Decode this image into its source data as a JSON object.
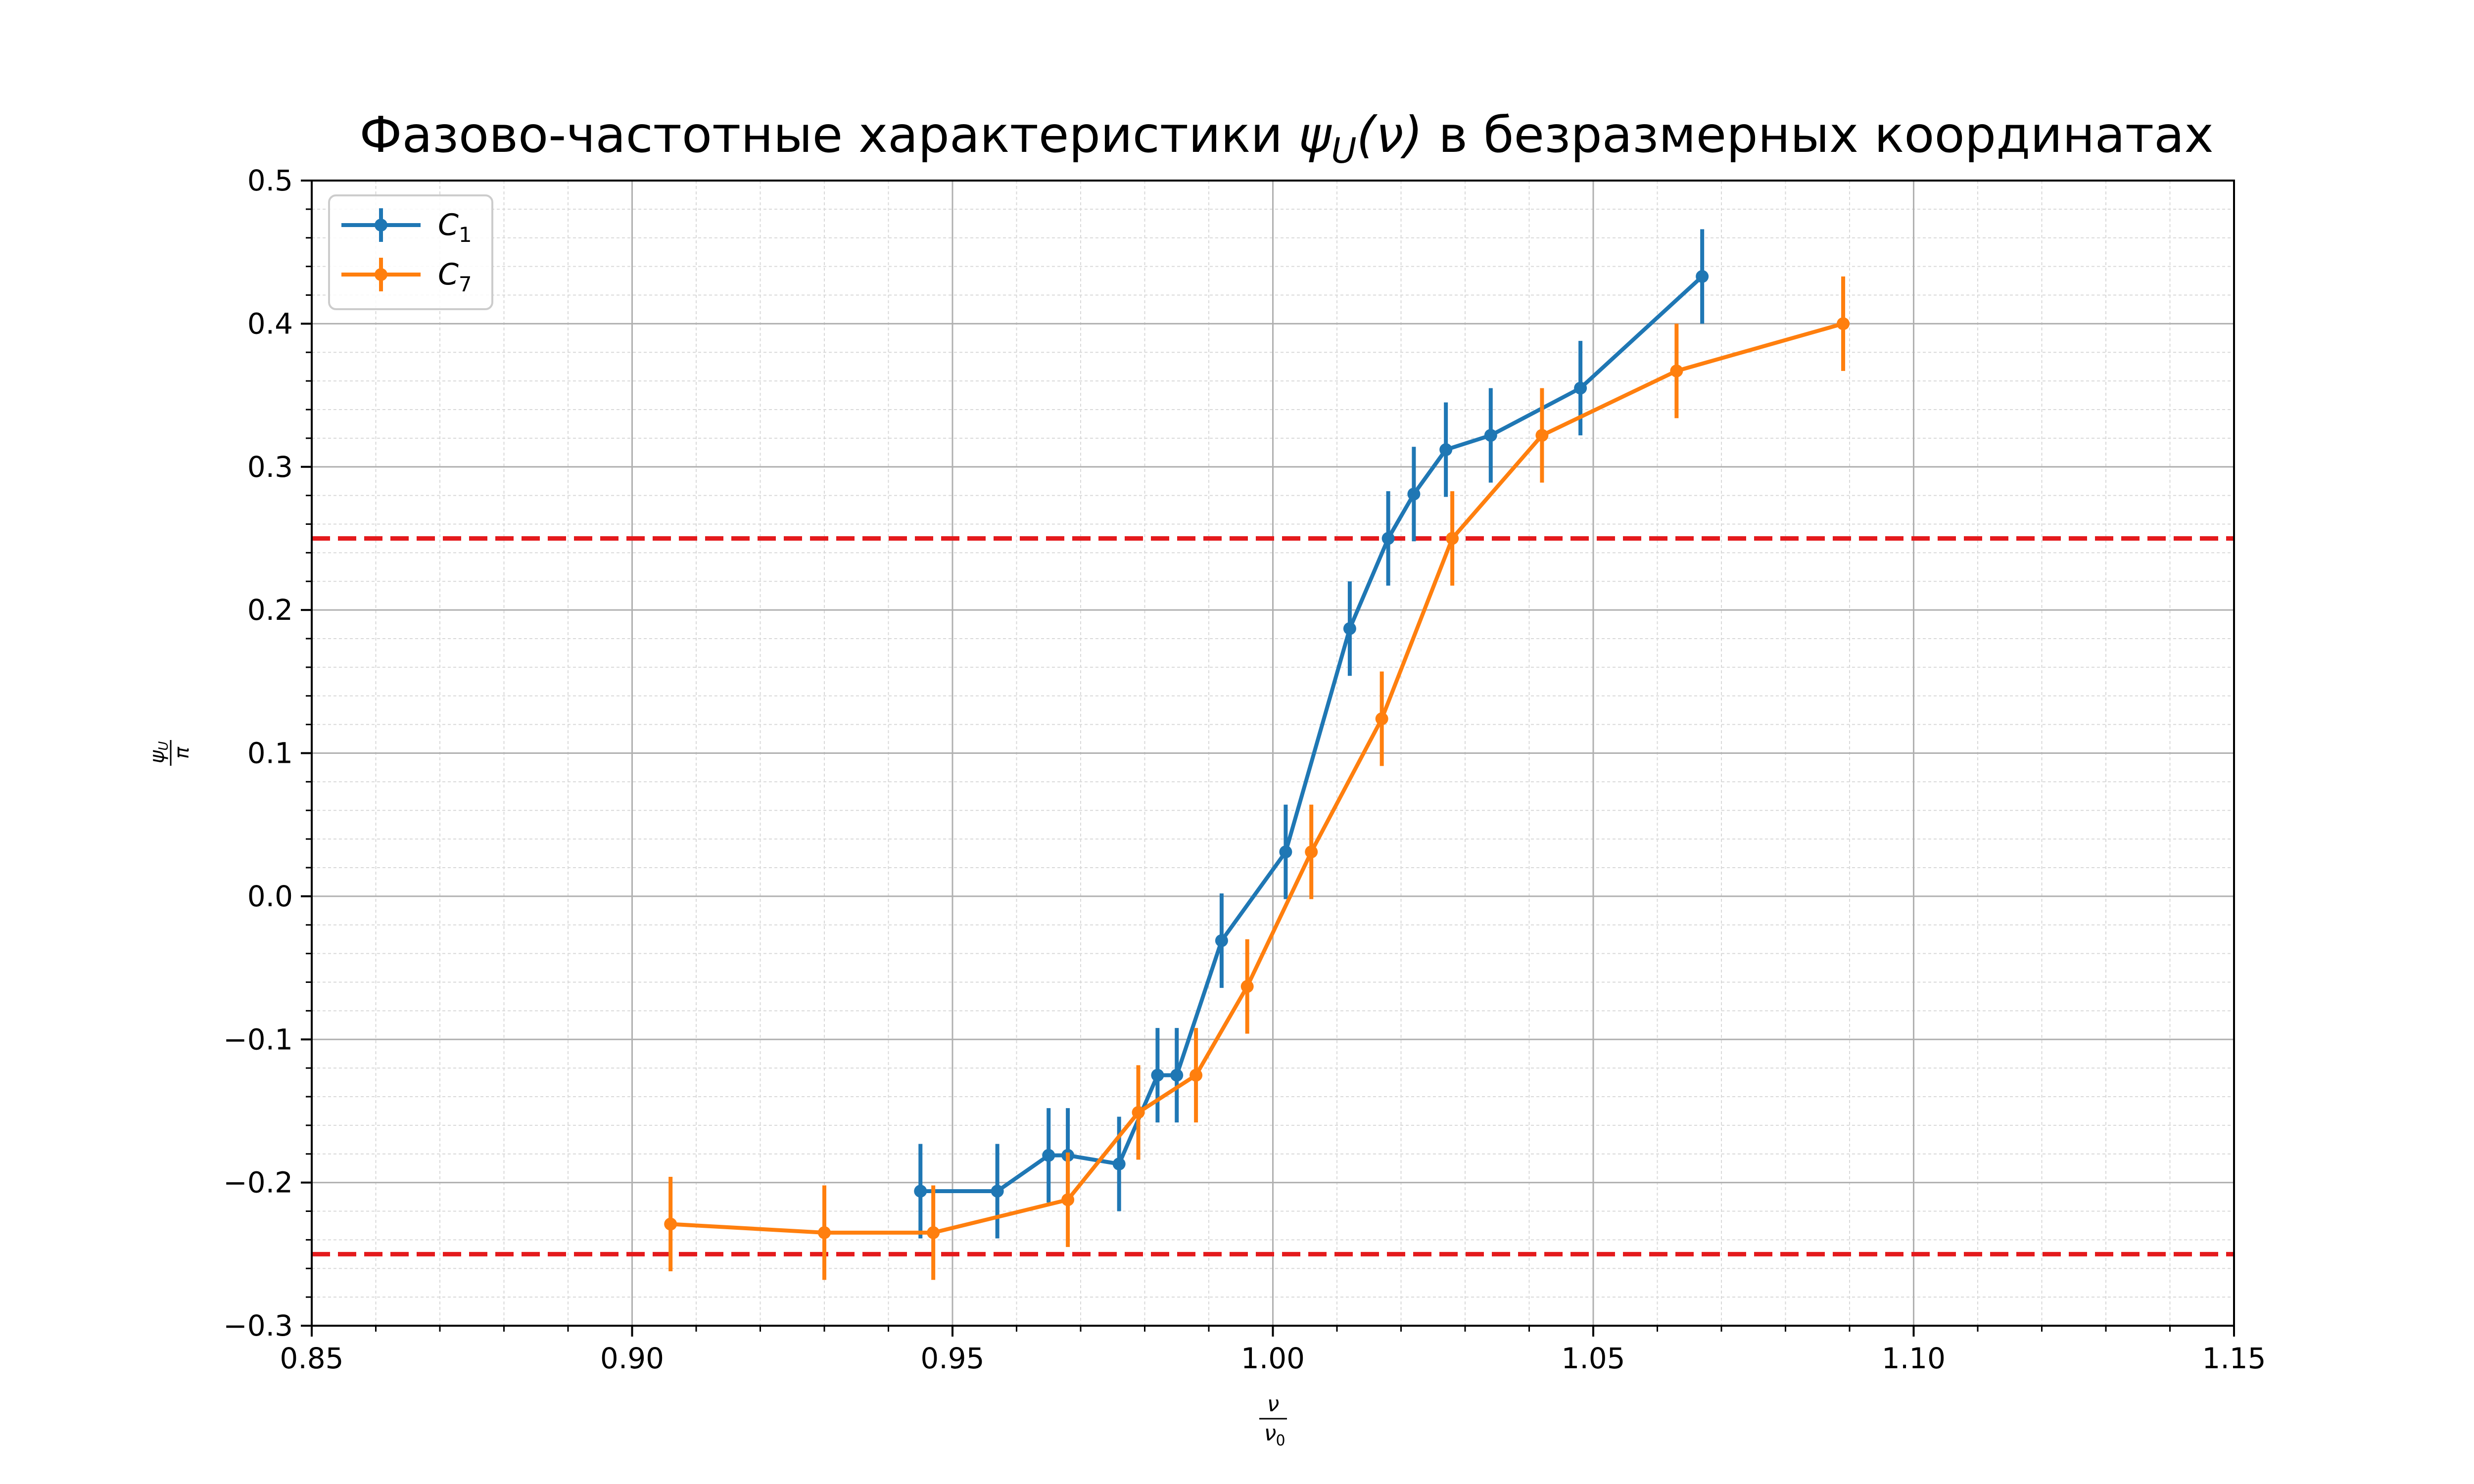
{
  "chart_data": {
    "type": "line",
    "title": {
      "prefix": "Фазово-частотные характеристики ",
      "psi": "ψ",
      "sub": "U",
      "args": "(ν)",
      "suffix": " в безразмерных координатах"
    },
    "xlabel": {
      "num": "ν",
      "den": "ν",
      "den_sub": "0"
    },
    "ylabel": {
      "num": "ψ",
      "num_sub": "U",
      "den": "π"
    },
    "xlim": [
      0.85,
      1.15
    ],
    "ylim": [
      -0.3,
      0.5
    ],
    "xticks": [
      "0.85",
      "0.90",
      "0.95",
      "1.00",
      "1.05",
      "1.10",
      "1.15"
    ],
    "yticks": [
      "−0.3",
      "−0.2",
      "−0.1",
      "0.0",
      "0.1",
      "0.2",
      "0.3",
      "0.4",
      "0.5"
    ],
    "grid": true,
    "minor_grid": true,
    "legend_position": "upper-left",
    "hlines": [
      {
        "y": 0.25,
        "color": "#e41a1c",
        "style": "dashed"
      },
      {
        "y": -0.25,
        "color": "#e41a1c",
        "style": "dashed"
      }
    ],
    "series": [
      {
        "name": "C",
        "name_sub": "1",
        "color": "#1f77b4",
        "x": [
          0.945,
          0.957,
          0.965,
          0.968,
          0.976,
          0.982,
          0.985,
          0.992,
          1.002,
          1.012,
          1.018,
          1.022,
          1.027,
          1.034,
          1.048,
          1.067
        ],
        "y": [
          -0.206,
          -0.206,
          -0.181,
          -0.181,
          -0.187,
          -0.125,
          -0.125,
          -0.031,
          0.031,
          0.187,
          0.25,
          0.281,
          0.312,
          0.322,
          0.355,
          0.433
        ],
        "yerr": 0.033
      },
      {
        "name": "C",
        "name_sub": "7",
        "color": "#ff7f0e",
        "x": [
          0.906,
          0.93,
          0.947,
          0.968,
          0.979,
          0.988,
          0.996,
          1.006,
          1.017,
          1.028,
          1.042,
          1.063,
          1.089
        ],
        "y": [
          -0.229,
          -0.235,
          -0.235,
          -0.212,
          -0.151,
          -0.125,
          -0.063,
          0.031,
          0.124,
          0.25,
          0.322,
          0.367,
          0.4
        ],
        "yerr": 0.033
      }
    ]
  }
}
